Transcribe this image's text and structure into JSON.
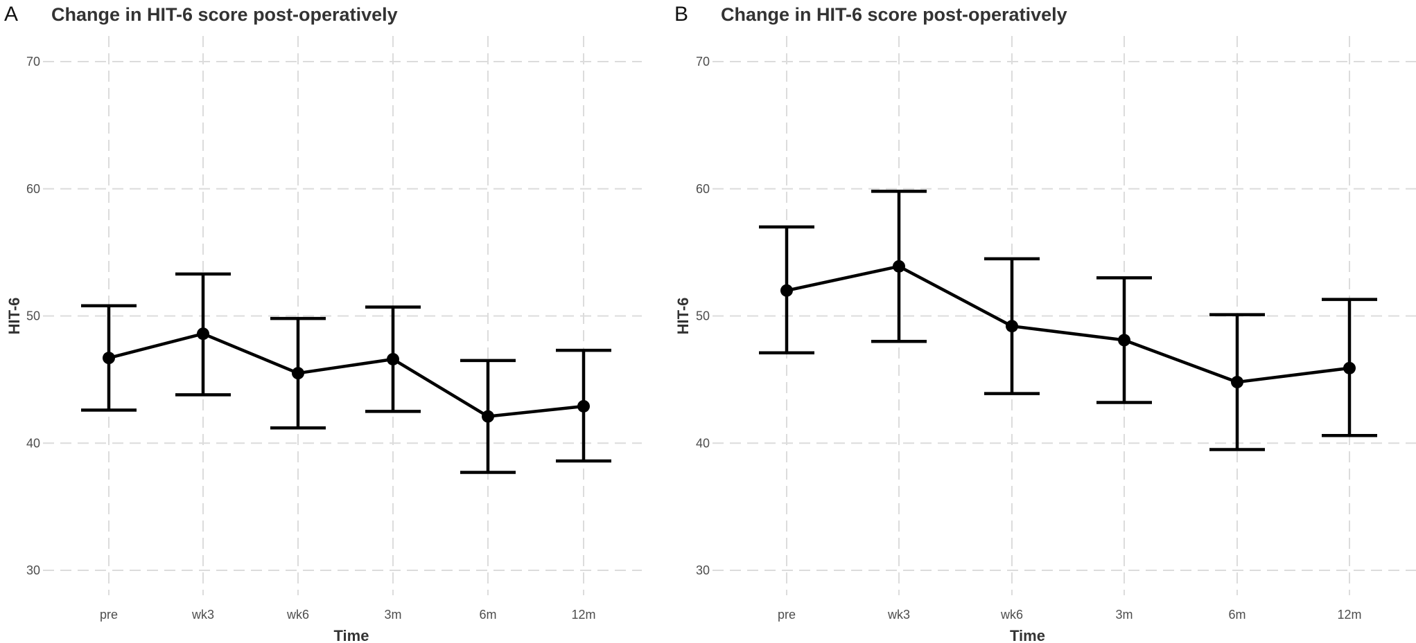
{
  "chart_data": [
    {
      "panel": "A",
      "type": "line",
      "title": "Change in HIT-6 score post-operatively",
      "xlabel": "Time",
      "ylabel": "HIT-6",
      "categories": [
        "pre",
        "wk3",
        "wk6",
        "3m",
        "6m",
        "12m"
      ],
      "yticks": [
        "30",
        "40",
        "50",
        "60",
        "70"
      ],
      "ylim": [
        30,
        70
      ],
      "grid": true,
      "series": [
        {
          "values": [
            46.7,
            48.6,
            45.5,
            46.6,
            42.1,
            42.9
          ],
          "error_low": [
            42.6,
            43.8,
            41.2,
            42.5,
            37.7,
            38.6
          ],
          "error_high": [
            50.8,
            53.3,
            49.8,
            50.7,
            46.5,
            47.3
          ],
          "color": "#000000"
        }
      ]
    },
    {
      "panel": "B",
      "type": "line",
      "title": "Change in HIT-6 score post-operatively",
      "xlabel": "Time",
      "ylabel": "HIT-6",
      "categories": [
        "pre",
        "wk3",
        "wk6",
        "3m",
        "6m",
        "12m"
      ],
      "yticks": [
        "30",
        "40",
        "50",
        "60",
        "70"
      ],
      "ylim": [
        30,
        70
      ],
      "grid": true,
      "series": [
        {
          "values": [
            52.0,
            53.9,
            49.2,
            48.1,
            44.8,
            45.9
          ],
          "error_low": [
            47.1,
            48.0,
            43.9,
            43.2,
            39.5,
            40.6
          ],
          "error_high": [
            57.0,
            59.8,
            54.5,
            53.0,
            50.1,
            51.3
          ],
          "color": "#000000"
        }
      ]
    }
  ]
}
